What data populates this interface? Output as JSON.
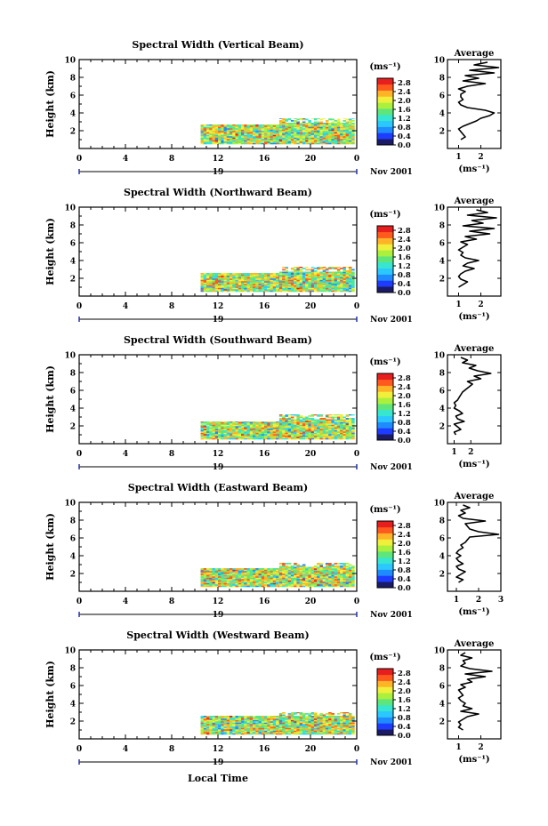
{
  "figure": {
    "xlabel": "Local Time",
    "colorbar_unit": "(ms⁻¹)",
    "colorbar_ticks": [
      "2.8",
      "2.4",
      "2.0",
      "1.6",
      "1.2",
      "0.8",
      "0.4",
      "0.0"
    ],
    "x_ticks": [
      "0",
      "4",
      "8",
      "12",
      "16",
      "20",
      "0"
    ],
    "y_ticks": [
      "2",
      "4",
      "6",
      "8",
      "10"
    ],
    "ylabel": "Height (km)",
    "day_label": "19",
    "month_label": "Nov 2001",
    "avg_title": "Average",
    "avg_unit": "(ms⁻¹)",
    "colormap": [
      "#1a1a66",
      "#1e3cff",
      "#1e8cff",
      "#2ac8ff",
      "#36e6d0",
      "#5ee67a",
      "#aaf03c",
      "#f0f03c",
      "#ffb428",
      "#ff5a1e",
      "#e61e1e"
    ]
  },
  "chart_data": [
    {
      "type": "heatmap",
      "title": "Spectral Width (Vertical Beam)",
      "xlabel": "Local Time",
      "ylabel": "Height (km)",
      "xlim": [
        0,
        24
      ],
      "ylim": [
        0,
        10
      ],
      "clim": [
        0,
        3.0
      ],
      "data_extent": [
        {
          "t0": 10.5,
          "t1": 17.3,
          "h0": 0.5,
          "h1": 2.7
        },
        {
          "t0": 17.3,
          "t1": 23.8,
          "h0": 0.5,
          "h1": 3.4
        }
      ],
      "average_profile": {
        "xticks": [
          "1",
          "2"
        ],
        "xlim": [
          0.5,
          2.9
        ],
        "height_km": [
          1.0,
          1.3,
          1.6,
          1.9,
          2.2,
          2.5,
          2.8,
          3.1,
          3.4,
          3.7,
          4.0,
          4.3,
          4.6,
          4.9,
          5.2,
          5.5,
          5.8,
          6.1,
          6.4,
          6.7,
          7.0,
          7.3,
          7.6,
          7.9,
          8.2,
          8.5,
          8.8,
          9.1,
          9.4,
          9.7
        ],
        "width_ms": [
          1.1,
          1.3,
          1.2,
          1.1,
          1.0,
          1.2,
          1.5,
          1.8,
          2.0,
          2.4,
          2.6,
          2.2,
          1.4,
          1.1,
          1.0,
          1.2,
          1.1,
          1.1,
          1.3,
          1.0,
          1.4,
          2.2,
          1.2,
          1.9,
          1.3,
          2.6,
          1.5,
          2.8,
          1.7,
          2.3
        ]
      }
    },
    {
      "type": "heatmap",
      "title": "Spectral Width (Northward Beam)",
      "xlabel": "Local Time",
      "ylabel": "Height (km)",
      "xlim": [
        0,
        24
      ],
      "ylim": [
        0,
        10
      ],
      "clim": [
        0,
        3.0
      ],
      "data_extent": [
        {
          "t0": 10.5,
          "t1": 17.3,
          "h0": 0.5,
          "h1": 2.6
        },
        {
          "t0": 17.3,
          "t1": 23.8,
          "h0": 0.5,
          "h1": 3.3
        }
      ],
      "average_profile": {
        "xticks": [
          "1",
          "2"
        ],
        "xlim": [
          0.5,
          2.9
        ],
        "height_km": [
          1.0,
          1.3,
          1.6,
          1.9,
          2.2,
          2.5,
          2.8,
          3.1,
          3.4,
          3.7,
          4.0,
          4.3,
          4.6,
          4.9,
          5.2,
          5.5,
          5.8,
          6.1,
          6.4,
          6.7,
          7.0,
          7.3,
          7.6,
          7.9,
          8.2,
          8.5,
          8.8,
          9.1,
          9.4,
          9.7
        ],
        "width_ms": [
          1.0,
          1.2,
          1.4,
          1.1,
          1.0,
          1.1,
          1.3,
          1.7,
          1.2,
          1.4,
          1.9,
          1.3,
          1.1,
          1.2,
          1.0,
          1.2,
          1.4,
          1.1,
          1.8,
          1.3,
          2.4,
          1.5,
          2.6,
          1.2,
          2.1,
          1.6,
          2.7,
          1.4,
          2.3,
          1.8
        ]
      }
    },
    {
      "type": "heatmap",
      "title": "Spectral Width (Southward Beam)",
      "xlabel": "Local Time",
      "ylabel": "Height (km)",
      "xlim": [
        0,
        24
      ],
      "ylim": [
        0,
        10
      ],
      "clim": [
        0,
        3.0
      ],
      "data_extent": [
        {
          "t0": 10.5,
          "t1": 17.3,
          "h0": 0.5,
          "h1": 2.5
        },
        {
          "t0": 17.3,
          "t1": 23.8,
          "h0": 0.5,
          "h1": 3.3
        }
      ],
      "average_profile": {
        "xticks": [
          "1",
          "2"
        ],
        "xlim": [
          0.6,
          3.8
        ],
        "height_km": [
          1.0,
          1.3,
          1.6,
          1.9,
          2.2,
          2.5,
          2.8,
          3.1,
          3.4,
          3.7,
          4.0,
          4.3,
          4.6,
          4.9,
          5.2,
          5.5,
          5.8,
          6.1,
          6.4,
          6.7,
          7.0,
          7.3,
          7.6,
          7.9,
          8.2,
          8.5,
          8.8,
          9.1,
          9.4,
          9.7
        ],
        "width_ms": [
          1.1,
          1.0,
          1.4,
          1.2,
          1.0,
          1.6,
          1.2,
          1.1,
          1.5,
          1.3,
          1.0,
          1.1,
          1.0,
          1.2,
          1.3,
          1.4,
          1.5,
          1.7,
          1.9,
          2.1,
          1.8,
          2.6,
          2.2,
          3.2,
          2.4,
          1.9,
          2.3,
          1.5,
          1.8,
          1.4
        ]
      }
    },
    {
      "type": "heatmap",
      "title": "Spectral Width (Eastward Beam)",
      "xlabel": "Local Time",
      "ylabel": "Height (km)",
      "xlim": [
        0,
        24
      ],
      "ylim": [
        0,
        10
      ],
      "clim": [
        0,
        3.0
      ],
      "data_extent": [
        {
          "t0": 10.5,
          "t1": 17.3,
          "h0": 0.5,
          "h1": 2.6
        },
        {
          "t0": 17.3,
          "t1": 23.8,
          "h0": 0.5,
          "h1": 3.2
        }
      ],
      "average_profile": {
        "xticks": [
          "1",
          "2",
          "3"
        ],
        "xlim": [
          0.6,
          3.0
        ],
        "height_km": [
          1.0,
          1.3,
          1.6,
          1.9,
          2.2,
          2.5,
          2.8,
          3.1,
          3.4,
          3.7,
          4.0,
          4.3,
          4.6,
          4.9,
          5.2,
          5.5,
          5.8,
          6.1,
          6.4,
          6.7,
          7.0,
          7.3,
          7.6,
          7.9,
          8.2,
          8.5,
          8.8,
          9.1,
          9.4,
          9.7
        ],
        "width_ms": [
          1.1,
          1.3,
          1.0,
          1.2,
          1.4,
          1.1,
          1.0,
          1.3,
          1.1,
          1.0,
          1.2,
          1.0,
          1.1,
          1.3,
          1.2,
          1.4,
          1.5,
          1.6,
          2.9,
          2.0,
          1.6,
          1.5,
          1.4,
          2.3,
          1.3,
          1.1,
          1.4,
          1.2,
          1.6,
          1.3
        ]
      }
    },
    {
      "type": "heatmap",
      "title": "Spectral Width (Westward Beam)",
      "xlabel": "Local Time",
      "ylabel": "Height (km)",
      "xlim": [
        0,
        24
      ],
      "ylim": [
        0,
        10
      ],
      "clim": [
        0,
        3.0
      ],
      "data_extent": [
        {
          "t0": 10.5,
          "t1": 17.3,
          "h0": 0.5,
          "h1": 2.6
        },
        {
          "t0": 17.3,
          "t1": 23.8,
          "h0": 0.5,
          "h1": 3.0
        }
      ],
      "average_profile": {
        "xticks": [
          "1",
          "2"
        ],
        "xlim": [
          0.5,
          2.9
        ],
        "height_km": [
          1.0,
          1.3,
          1.6,
          1.9,
          2.2,
          2.5,
          2.8,
          3.1,
          3.4,
          3.7,
          4.0,
          4.3,
          4.6,
          4.9,
          5.2,
          5.5,
          5.8,
          6.1,
          6.4,
          6.7,
          7.0,
          7.3,
          7.6,
          7.9,
          8.2,
          8.5,
          8.8,
          9.1,
          9.4,
          9.7
        ],
        "width_ms": [
          1.2,
          1.0,
          1.1,
          1.0,
          1.2,
          1.4,
          1.9,
          1.1,
          1.6,
          1.2,
          1.3,
          1.1,
          1.0,
          1.2,
          1.1,
          1.0,
          1.3,
          1.1,
          1.6,
          1.4,
          2.2,
          1.3,
          2.5,
          1.5,
          1.1,
          1.3,
          1.2,
          1.6,
          1.1,
          1.3
        ]
      }
    }
  ]
}
